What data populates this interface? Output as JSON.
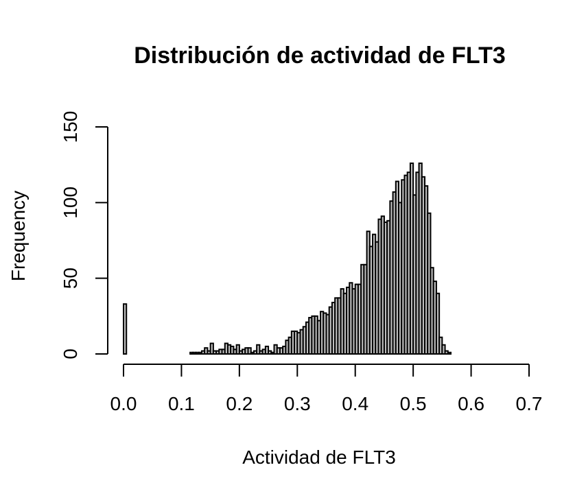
{
  "chart_data": {
    "type": "bar",
    "title": "Distribución de actividad de FLT3",
    "xlabel": "Actividad de FLT3",
    "ylabel": "Frequency",
    "xlim": [
      0,
      0.7
    ],
    "ylim": [
      0,
      150
    ],
    "x_ticks": [
      "0.0",
      "0.1",
      "0.2",
      "0.3",
      "0.4",
      "0.5",
      "0.6",
      "0.7"
    ],
    "x_tick_values": [
      0,
      0.1,
      0.2,
      0.3,
      0.4,
      0.5,
      0.6,
      0.7
    ],
    "y_ticks": [
      "0",
      "50",
      "100",
      "150"
    ],
    "y_tick_values": [
      0,
      50,
      100,
      150
    ],
    "bin_width": 0.005,
    "bin_start": 0,
    "frequencies": [
      33,
      0,
      0,
      0,
      0,
      0,
      0,
      0,
      0,
      0,
      0,
      0,
      0,
      0,
      0,
      0,
      0,
      0,
      0,
      0,
      0,
      0,
      0,
      1,
      1,
      1,
      1,
      2,
      4,
      2,
      7,
      2,
      2,
      3,
      3,
      7,
      6,
      5,
      3,
      6,
      2,
      3,
      4,
      4,
      1,
      2,
      6,
      2,
      3,
      5,
      2,
      1,
      6,
      4,
      4,
      5,
      9,
      11,
      15,
      15,
      14,
      16,
      18,
      21,
      24,
      25,
      25,
      22,
      28,
      27,
      26,
      31,
      34,
      37,
      37,
      43,
      40,
      44,
      47,
      43,
      46,
      46,
      59,
      59,
      81,
      71,
      79,
      74,
      89,
      91,
      87,
      88,
      101,
      107,
      114,
      100,
      115,
      118,
      120,
      126,
      105,
      120,
      126,
      117,
      111,
      93,
      57,
      48,
      40,
      11,
      6,
      2,
      1
    ],
    "grid": false,
    "legend": "none"
  }
}
